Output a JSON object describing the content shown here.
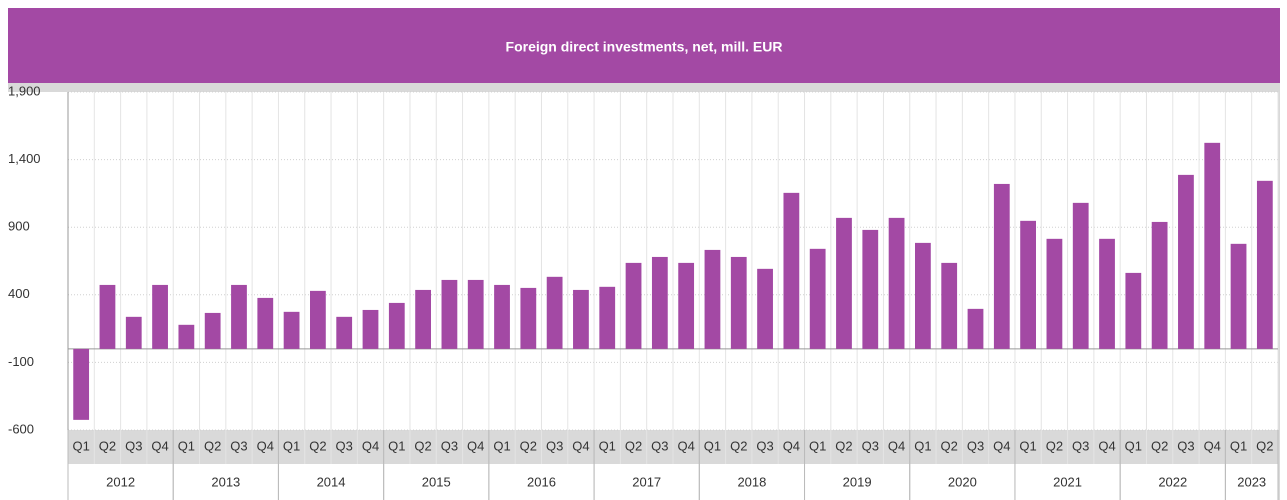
{
  "chart_data": {
    "type": "bar",
    "title": "Foreign direct investments, net, mill. EUR",
    "color": "#a349a4",
    "years": [
      {
        "year": "2012",
        "quarters": [
          "Q1",
          "Q2",
          "Q3",
          "Q4"
        ]
      },
      {
        "year": "2013",
        "quarters": [
          "Q1",
          "Q2",
          "Q3",
          "Q4"
        ]
      },
      {
        "year": "2014",
        "quarters": [
          "Q1",
          "Q2",
          "Q3",
          "Q4"
        ]
      },
      {
        "year": "2015",
        "quarters": [
          "Q1",
          "Q2",
          "Q3",
          "Q4"
        ]
      },
      {
        "year": "2016",
        "quarters": [
          "Q1",
          "Q2",
          "Q3",
          "Q4"
        ]
      },
      {
        "year": "2017",
        "quarters": [
          "Q1",
          "Q2",
          "Q3",
          "Q4"
        ]
      },
      {
        "year": "2018",
        "quarters": [
          "Q1",
          "Q2",
          "Q3",
          "Q4"
        ]
      },
      {
        "year": "2019",
        "quarters": [
          "Q1",
          "Q2",
          "Q3",
          "Q4"
        ]
      },
      {
        "year": "2020",
        "quarters": [
          "Q1",
          "Q2",
          "Q3",
          "Q4"
        ]
      },
      {
        "year": "2021",
        "quarters": [
          "Q1",
          "Q2",
          "Q3",
          "Q4"
        ]
      },
      {
        "year": "2022",
        "quarters": [
          "Q1",
          "Q2",
          "Q3",
          "Q4"
        ]
      },
      {
        "year": "2023",
        "quarters": [
          "Q1",
          "Q2"
        ]
      }
    ],
    "values": [
      -525,
      473,
      237,
      473,
      178,
      266,
      473,
      377,
      274,
      429,
      237,
      288,
      340,
      436,
      510,
      510,
      473,
      451,
      533,
      436,
      459,
      636,
      680,
      636,
      732,
      680,
      592,
      1154,
      740,
      969,
      880,
      969,
      784,
      636,
      296,
      1220,
      947,
      814,
      1080,
      814,
      562,
      939,
      1287,
      1524,
      777,
      1243
    ],
    "ylim": [
      -600,
      1900
    ],
    "yticks": [
      {
        "value": 1900,
        "label": "1,900"
      },
      {
        "value": 1400,
        "label": "1,400"
      },
      900,
      400,
      -100,
      -600
    ],
    "grid": true
  }
}
